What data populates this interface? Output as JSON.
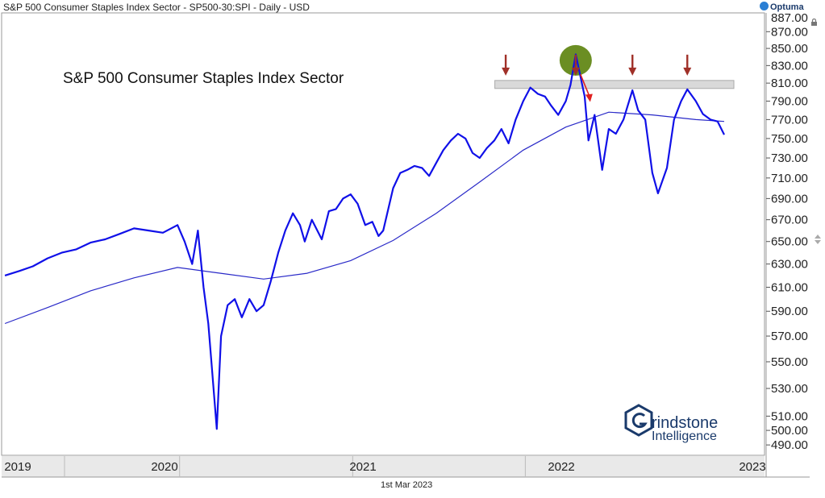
{
  "header": {
    "title": "S&P 500 Consumer Staples Index Sector - SP500-30:SPI - Daily - USD",
    "brand": "Optuma"
  },
  "footer": {
    "date": "1st Mar 2023"
  },
  "annotation": {
    "chart_label": "S&P 500 Consumer Staples Index Sector",
    "logo_word_1": "rindstone",
    "logo_word_2": "Intelligence"
  },
  "colors": {
    "price": "#1010e8",
    "moving_average": "#2a2ac8",
    "resistance_fill": "#d9d9d9",
    "highlight_circle": "#6b8e23",
    "marker_arrow": "#a03028",
    "breakdown_arrow": "#e02020",
    "logo": "#1a3a6b",
    "axis_band": "#e9e9e9"
  },
  "chart_data": {
    "type": "line",
    "title": "",
    "xlabel": "",
    "ylabel": "",
    "x_ticks": [
      "2019",
      "2020",
      "2021",
      "2022",
      "2023"
    ],
    "y_ticks": [
      490,
      500,
      510,
      530,
      550,
      570,
      590,
      610,
      630,
      650,
      670,
      690,
      710,
      730,
      750,
      770,
      790,
      810,
      830,
      850,
      870
    ],
    "y_tick_labels": [
      "490.00",
      "500.00",
      "510.00",
      "530.00",
      "550.00",
      "570.00",
      "590.00",
      "610.00",
      "630.00",
      "650.00",
      "670.00",
      "690.00",
      "710.00",
      "730.00",
      "750.00",
      "770.00",
      "790.00",
      "810.00",
      "830.00",
      "850.00",
      "870.00"
    ],
    "y_top_partial_label": "887.00",
    "ylim": [
      483,
      893
    ],
    "y_scale": "log",
    "xlim": [
      "2018-12-24",
      "2023-03-01"
    ],
    "grid": false,
    "legend": "none",
    "series": [
      {
        "key": "price",
        "values": [
          [
            "2018-12-31",
            620
          ],
          [
            "2019-01-31",
            624
          ],
          [
            "2019-02-28",
            628
          ],
          [
            "2019-03-31",
            635
          ],
          [
            "2019-04-30",
            640
          ],
          [
            "2019-05-31",
            643
          ],
          [
            "2019-06-30",
            649
          ],
          [
            "2019-07-31",
            652
          ],
          [
            "2019-08-31",
            657
          ],
          [
            "2019-09-30",
            662
          ],
          [
            "2019-10-31",
            660
          ],
          [
            "2019-11-30",
            658
          ],
          [
            "2019-12-31",
            665
          ],
          [
            "2020-01-15",
            650
          ],
          [
            "2020-01-31",
            630
          ],
          [
            "2020-02-12",
            660
          ],
          [
            "2020-02-24",
            610
          ],
          [
            "2020-03-05",
            580
          ],
          [
            "2020-03-12",
            548
          ],
          [
            "2020-03-23",
            501
          ],
          [
            "2020-04-01",
            570
          ],
          [
            "2020-04-15",
            595
          ],
          [
            "2020-04-30",
            600
          ],
          [
            "2020-05-15",
            585
          ],
          [
            "2020-05-31",
            600
          ],
          [
            "2020-06-15",
            590
          ],
          [
            "2020-06-30",
            595
          ],
          [
            "2020-07-15",
            615
          ],
          [
            "2020-07-31",
            640
          ],
          [
            "2020-08-15",
            660
          ],
          [
            "2020-08-31",
            676
          ],
          [
            "2020-09-15",
            665
          ],
          [
            "2020-09-25",
            650
          ],
          [
            "2020-10-10",
            670
          ],
          [
            "2020-10-31",
            652
          ],
          [
            "2020-11-15",
            678
          ],
          [
            "2020-11-30",
            680
          ],
          [
            "2020-12-15",
            690
          ],
          [
            "2020-12-31",
            694
          ],
          [
            "2021-01-15",
            685
          ],
          [
            "2021-01-31",
            665
          ],
          [
            "2021-02-15",
            668
          ],
          [
            "2021-02-28",
            655
          ],
          [
            "2021-03-10",
            660
          ],
          [
            "2021-03-31",
            700
          ],
          [
            "2021-04-15",
            715
          ],
          [
            "2021-04-30",
            718
          ],
          [
            "2021-05-15",
            722
          ],
          [
            "2021-05-31",
            720
          ],
          [
            "2021-06-15",
            712
          ],
          [
            "2021-06-30",
            725
          ],
          [
            "2021-07-15",
            738
          ],
          [
            "2021-07-31",
            748
          ],
          [
            "2021-08-15",
            755
          ],
          [
            "2021-08-31",
            750
          ],
          [
            "2021-09-15",
            735
          ],
          [
            "2021-09-30",
            730
          ],
          [
            "2021-10-15",
            740
          ],
          [
            "2021-10-31",
            748
          ],
          [
            "2021-11-15",
            760
          ],
          [
            "2021-11-30",
            745
          ],
          [
            "2021-12-15",
            770
          ],
          [
            "2021-12-31",
            790
          ],
          [
            "2022-01-15",
            805
          ],
          [
            "2022-01-31",
            798
          ],
          [
            "2022-02-15",
            795
          ],
          [
            "2022-02-28",
            785
          ],
          [
            "2022-03-15",
            775
          ],
          [
            "2022-03-31",
            790
          ],
          [
            "2022-04-10",
            808
          ],
          [
            "2022-04-21",
            843
          ],
          [
            "2022-04-30",
            820
          ],
          [
            "2022-05-10",
            795
          ],
          [
            "2022-05-18",
            748
          ],
          [
            "2022-05-31",
            775
          ],
          [
            "2022-06-16",
            718
          ],
          [
            "2022-06-30",
            760
          ],
          [
            "2022-07-15",
            755
          ],
          [
            "2022-07-31",
            770
          ],
          [
            "2022-08-19",
            802
          ],
          [
            "2022-08-31",
            780
          ],
          [
            "2022-09-15",
            770
          ],
          [
            "2022-09-30",
            715
          ],
          [
            "2022-10-12",
            695
          ],
          [
            "2022-10-31",
            720
          ],
          [
            "2022-11-15",
            770
          ],
          [
            "2022-11-30",
            790
          ],
          [
            "2022-12-13",
            803
          ],
          [
            "2022-12-31",
            790
          ],
          [
            "2023-01-15",
            776
          ],
          [
            "2023-01-31",
            770
          ],
          [
            "2023-02-15",
            768
          ],
          [
            "2023-03-01",
            754
          ]
        ]
      },
      {
        "key": "moving_average",
        "values": [
          [
            "2018-12-31",
            580
          ],
          [
            "2019-03-31",
            593
          ],
          [
            "2019-06-30",
            607
          ],
          [
            "2019-09-30",
            618
          ],
          [
            "2019-12-31",
            627
          ],
          [
            "2020-03-31",
            622
          ],
          [
            "2020-06-30",
            617
          ],
          [
            "2020-09-30",
            622
          ],
          [
            "2020-12-31",
            633
          ],
          [
            "2021-03-31",
            651
          ],
          [
            "2021-06-30",
            676
          ],
          [
            "2021-09-30",
            706
          ],
          [
            "2021-12-31",
            738
          ],
          [
            "2022-03-31",
            762
          ],
          [
            "2022-06-30",
            778
          ],
          [
            "2022-09-30",
            775
          ],
          [
            "2022-12-31",
            770
          ],
          [
            "2023-03-01",
            768
          ]
        ]
      }
    ],
    "resistance_band": {
      "from": "2021-11-01",
      "to": "2023-03-20",
      "low": 804,
      "high": 813
    },
    "peak_markers": [
      "2021-11-24",
      "2022-04-21",
      "2022-08-19",
      "2022-12-13"
    ],
    "highlight": {
      "x": "2022-04-21",
      "y": 836
    },
    "breakdown_arrow": {
      "from": [
        "2022-05-01",
        820
      ],
      "to": [
        "2022-05-20",
        790
      ]
    }
  }
}
